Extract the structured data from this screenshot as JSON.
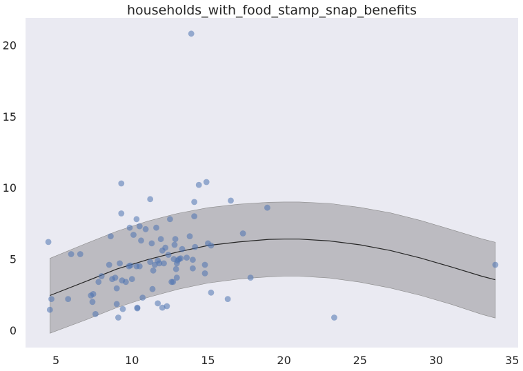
{
  "chart_data": {
    "type": "scatter",
    "title": "households_with_food_stamp_snap_benefits",
    "xlabel": "",
    "ylabel": "",
    "xlim": [
      3.0,
      35.4
    ],
    "ylim": [
      -1.2,
      21.9
    ],
    "xticks": [
      5,
      10,
      15,
      20,
      25,
      30,
      35
    ],
    "yticks": [
      0,
      5,
      10,
      15,
      20
    ],
    "grid": false,
    "legend": "none",
    "colors": {
      "background": "#eaeaf2",
      "points": "#4c72b0",
      "band": "#bcbbc1",
      "band_edge": "#8a8a8a",
      "fit_line": "#262626"
    },
    "fit": {
      "type": "quadratic",
      "x": [
        4.6,
        7,
        9,
        11,
        13,
        15,
        17,
        19,
        20,
        21,
        23,
        25,
        27,
        29,
        31,
        33,
        33.9
      ],
      "y": [
        2.45,
        3.45,
        4.3,
        4.95,
        5.5,
        5.95,
        6.2,
        6.38,
        6.4,
        6.4,
        6.27,
        6.0,
        5.6,
        5.07,
        4.45,
        3.8,
        3.55
      ],
      "lower": [
        -0.2,
        0.75,
        1.6,
        2.3,
        2.88,
        3.32,
        3.6,
        3.76,
        3.8,
        3.8,
        3.67,
        3.38,
        2.97,
        2.45,
        1.83,
        1.13,
        0.87
      ],
      "upper": [
        5.05,
        6.1,
        6.95,
        7.65,
        8.2,
        8.6,
        8.84,
        8.98,
        9.0,
        9.0,
        8.9,
        8.62,
        8.24,
        7.7,
        7.07,
        6.42,
        6.18
      ]
    },
    "points": [
      {
        "x": 4.5,
        "y": 6.2
      },
      {
        "x": 4.6,
        "y": 1.45
      },
      {
        "x": 4.7,
        "y": 2.2
      },
      {
        "x": 5.8,
        "y": 2.2
      },
      {
        "x": 6.0,
        "y": 5.35
      },
      {
        "x": 6.6,
        "y": 5.35
      },
      {
        "x": 7.3,
        "y": 2.45
      },
      {
        "x": 7.4,
        "y": 2.0
      },
      {
        "x": 7.45,
        "y": 2.55
      },
      {
        "x": 7.6,
        "y": 1.15
      },
      {
        "x": 7.8,
        "y": 3.4
      },
      {
        "x": 8.0,
        "y": 3.8
      },
      {
        "x": 8.5,
        "y": 4.6
      },
      {
        "x": 8.6,
        "y": 6.6
      },
      {
        "x": 8.7,
        "y": 3.6
      },
      {
        "x": 8.9,
        "y": 3.7
      },
      {
        "x": 9.0,
        "y": 1.85
      },
      {
        "x": 9.0,
        "y": 2.95
      },
      {
        "x": 9.1,
        "y": 0.9
      },
      {
        "x": 9.2,
        "y": 4.7
      },
      {
        "x": 9.3,
        "y": 8.2
      },
      {
        "x": 9.3,
        "y": 10.3
      },
      {
        "x": 9.35,
        "y": 3.5
      },
      {
        "x": 9.4,
        "y": 1.5
      },
      {
        "x": 9.6,
        "y": 3.4
      },
      {
        "x": 9.8,
        "y": 4.5
      },
      {
        "x": 9.85,
        "y": 7.2
      },
      {
        "x": 9.9,
        "y": 4.55
      },
      {
        "x": 10.0,
        "y": 3.6
      },
      {
        "x": 10.1,
        "y": 6.7
      },
      {
        "x": 10.3,
        "y": 4.5
      },
      {
        "x": 10.3,
        "y": 7.8
      },
      {
        "x": 10.35,
        "y": 1.6
      },
      {
        "x": 10.35,
        "y": 1.55
      },
      {
        "x": 10.5,
        "y": 4.5
      },
      {
        "x": 10.5,
        "y": 7.3
      },
      {
        "x": 10.6,
        "y": 6.3
      },
      {
        "x": 10.7,
        "y": 2.3
      },
      {
        "x": 10.9,
        "y": 7.1
      },
      {
        "x": 11.2,
        "y": 9.2
      },
      {
        "x": 11.2,
        "y": 4.8
      },
      {
        "x": 11.3,
        "y": 6.1
      },
      {
        "x": 11.35,
        "y": 2.9
      },
      {
        "x": 11.4,
        "y": 4.2
      },
      {
        "x": 11.5,
        "y": 4.6
      },
      {
        "x": 11.6,
        "y": 7.2
      },
      {
        "x": 11.7,
        "y": 4.9
      },
      {
        "x": 11.7,
        "y": 1.9
      },
      {
        "x": 11.8,
        "y": 4.7
      },
      {
        "x": 11.9,
        "y": 6.4
      },
      {
        "x": 12.0,
        "y": 5.6
      },
      {
        "x": 12.0,
        "y": 1.6
      },
      {
        "x": 12.1,
        "y": 4.7
      },
      {
        "x": 12.2,
        "y": 5.8
      },
      {
        "x": 12.3,
        "y": 1.7
      },
      {
        "x": 12.4,
        "y": 5.3
      },
      {
        "x": 12.5,
        "y": 7.8
      },
      {
        "x": 12.6,
        "y": 3.4
      },
      {
        "x": 12.7,
        "y": 3.4
      },
      {
        "x": 12.75,
        "y": 5.0
      },
      {
        "x": 12.8,
        "y": 6.0
      },
      {
        "x": 12.85,
        "y": 6.4
      },
      {
        "x": 12.9,
        "y": 4.3
      },
      {
        "x": 12.95,
        "y": 3.7
      },
      {
        "x": 12.95,
        "y": 4.7
      },
      {
        "x": 13.0,
        "y": 4.9
      },
      {
        "x": 13.1,
        "y": 5.0
      },
      {
        "x": 13.2,
        "y": 5.05
      },
      {
        "x": 13.3,
        "y": 5.7
      },
      {
        "x": 13.6,
        "y": 5.1
      },
      {
        "x": 13.8,
        "y": 6.6
      },
      {
        "x": 13.9,
        "y": 20.8
      },
      {
        "x": 14.0,
        "y": 4.95
      },
      {
        "x": 14.0,
        "y": 4.35
      },
      {
        "x": 14.1,
        "y": 8.0
      },
      {
        "x": 14.1,
        "y": 9.0
      },
      {
        "x": 14.15,
        "y": 5.85
      },
      {
        "x": 14.4,
        "y": 10.2
      },
      {
        "x": 14.8,
        "y": 4.6
      },
      {
        "x": 14.8,
        "y": 4.0
      },
      {
        "x": 14.9,
        "y": 10.4
      },
      {
        "x": 15.0,
        "y": 6.1
      },
      {
        "x": 15.2,
        "y": 2.65
      },
      {
        "x": 15.2,
        "y": 5.95
      },
      {
        "x": 16.3,
        "y": 2.2
      },
      {
        "x": 16.5,
        "y": 9.1
      },
      {
        "x": 17.3,
        "y": 6.8
      },
      {
        "x": 17.8,
        "y": 3.7
      },
      {
        "x": 18.9,
        "y": 8.6
      },
      {
        "x": 23.3,
        "y": 0.9
      },
      {
        "x": 33.9,
        "y": 4.6
      }
    ]
  }
}
